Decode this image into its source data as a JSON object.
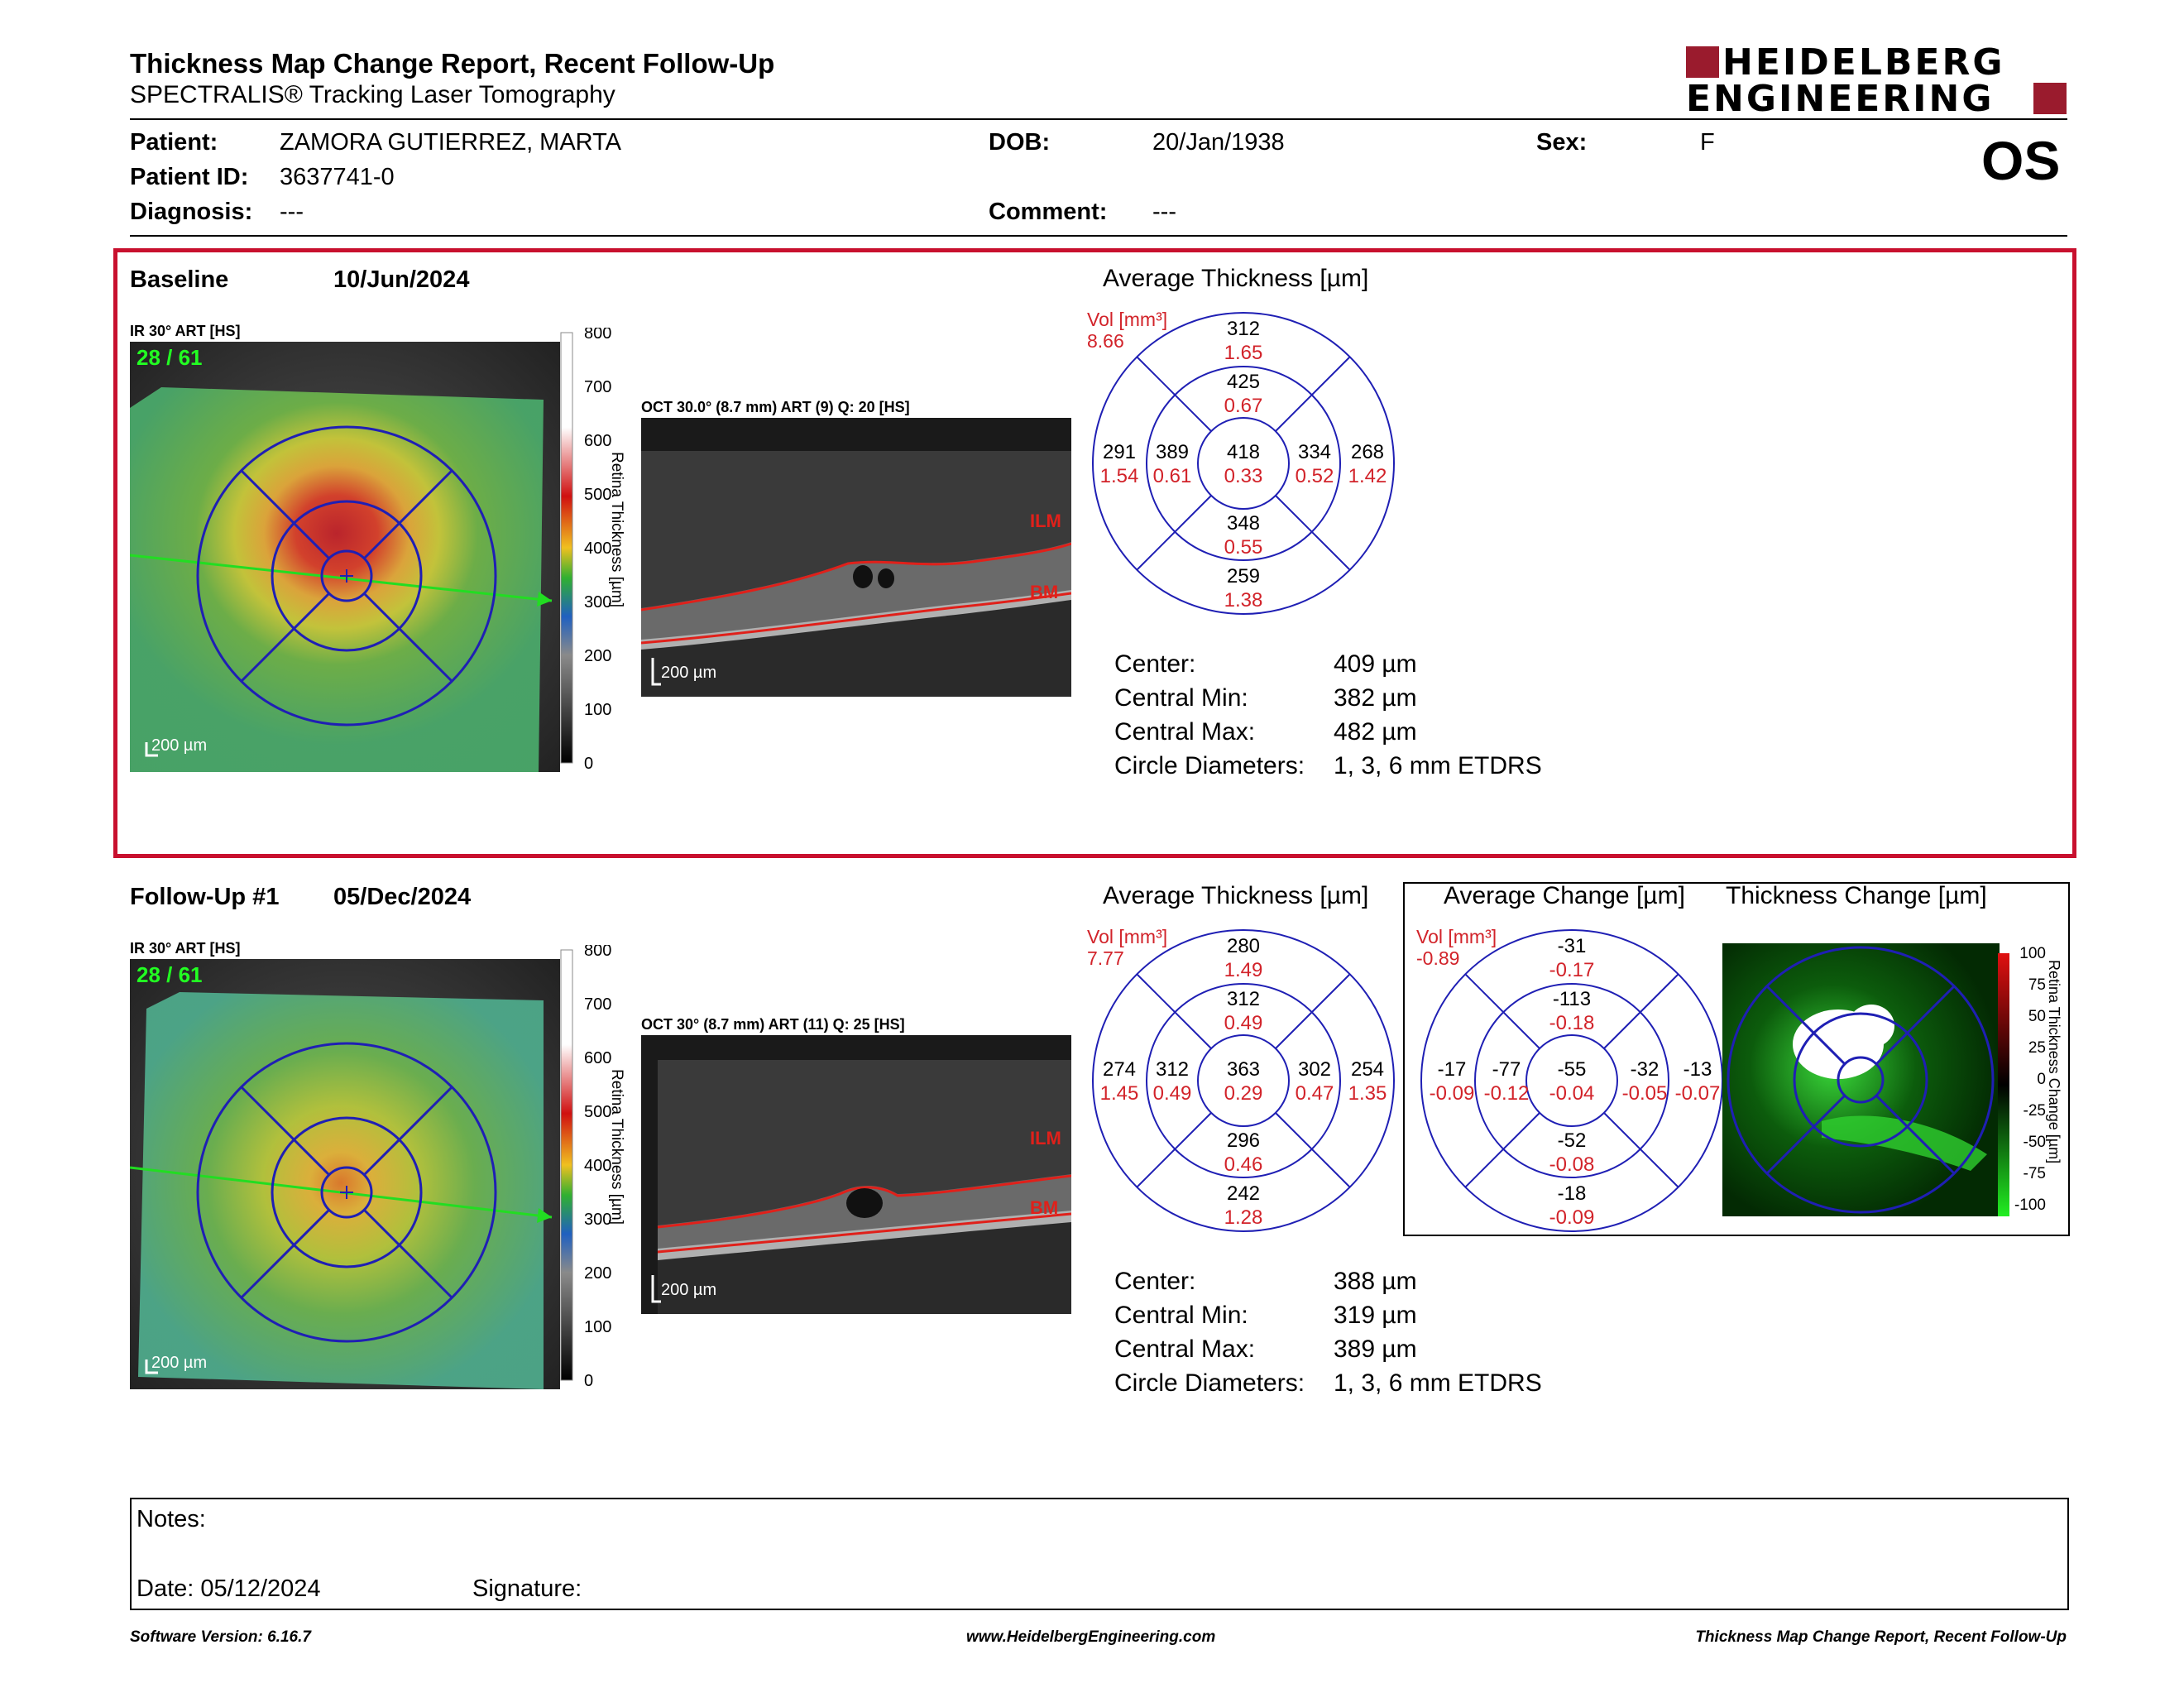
{
  "header": {
    "title": "Thickness Map Change Report, Recent Follow-Up",
    "subtitle": "SPECTRALIS® Tracking Laser Tomography",
    "logo_line1": "HEIDELBERG",
    "logo_line2": "ENGINEERING",
    "eye": "OS"
  },
  "patient": {
    "patient_label": "Patient:",
    "patient_value": "ZAMORA GUTIERREZ, MARTA",
    "id_label": "Patient ID:",
    "id_value": "3637741-0",
    "diagnosis_label": "Diagnosis:",
    "diagnosis_value": "---",
    "dob_label": "DOB:",
    "dob_value": "20/Jan/1938",
    "comment_label": "Comment:",
    "comment_value": "---",
    "sex_label": "Sex:",
    "sex_value": "F"
  },
  "baseline": {
    "label": "Baseline",
    "date": "10/Jun/2024",
    "ir_label": "IR 30° ART [HS]",
    "frame": "28 / 61",
    "scalebar": "200 µm",
    "colorbar_ticks": [
      "800",
      "700",
      "600",
      "500",
      "400",
      "300",
      "200",
      "100",
      "0"
    ],
    "colorbar_title": "Retina Thickness [µm]",
    "oct_label": "OCT 30.0° (8.7 mm) ART (9) Q: 20 [HS]",
    "oct_scalebar": "200 µm",
    "ilm": "ILM",
    "bm": "BM",
    "avg_title": "Average Thickness [µm]",
    "vol_label": "Vol [mm³]",
    "vol_value": "8.66",
    "sectors": {
      "outer_top": [
        "312",
        "1.65"
      ],
      "inner_top": [
        "425",
        "0.67"
      ],
      "outer_left": [
        "291",
        "1.54"
      ],
      "inner_left": [
        "389",
        "0.61"
      ],
      "center": [
        "418",
        "0.33"
      ],
      "inner_right": [
        "334",
        "0.52"
      ],
      "outer_right": [
        "268",
        "1.42"
      ],
      "inner_bottom": [
        "348",
        "0.55"
      ],
      "outer_bottom": [
        "259",
        "1.38"
      ]
    },
    "center_label": "Center:",
    "center_value": "409 µm",
    "min_label": "Central Min:",
    "min_value": "382 µm",
    "max_label": "Central Max:",
    "max_value": "482 µm",
    "circ_label": "Circle Diameters:",
    "circ_value": "1, 3, 6 mm ETDRS"
  },
  "followup": {
    "label": "Follow-Up #1",
    "date": "05/Dec/2024",
    "ir_label": "IR 30° ART [HS]",
    "frame": "28 / 61",
    "scalebar": "200 µm",
    "colorbar_ticks": [
      "800",
      "700",
      "600",
      "500",
      "400",
      "300",
      "200",
      "100",
      "0"
    ],
    "colorbar_title": "Retina Thickness [µm]",
    "oct_label": "OCT 30° (8.7 mm) ART (11) Q: 25 [HS]",
    "oct_scalebar": "200 µm",
    "ilm": "ILM",
    "bm": "BM",
    "avg_title": "Average Thickness [µm]",
    "vol_label": "Vol [mm³]",
    "vol_value": "7.77",
    "sectors": {
      "outer_top": [
        "280",
        "1.49"
      ],
      "inner_top": [
        "312",
        "0.49"
      ],
      "outer_left": [
        "274",
        "1.45"
      ],
      "inner_left": [
        "312",
        "0.49"
      ],
      "center": [
        "363",
        "0.29"
      ],
      "inner_right": [
        "302",
        "0.47"
      ],
      "outer_right": [
        "254",
        "1.35"
      ],
      "inner_bottom": [
        "296",
        "0.46"
      ],
      "outer_bottom": [
        "242",
        "1.28"
      ]
    },
    "change_title": "Average Change [µm]",
    "change_vol_label": "Vol [mm³]",
    "change_vol_value": "-0.89",
    "change_sectors": {
      "outer_top": [
        "-31",
        "-0.17"
      ],
      "inner_top": [
        "-113",
        "-0.18"
      ],
      "outer_left": [
        "-17",
        "-0.09"
      ],
      "inner_left": [
        "-77",
        "-0.12"
      ],
      "center": [
        "-55",
        "-0.04"
      ],
      "inner_right": [
        "-32",
        "-0.05"
      ],
      "outer_right": [
        "-13",
        "-0.07"
      ],
      "inner_bottom": [
        "-52",
        "-0.08"
      ],
      "outer_bottom": [
        "-18",
        "-0.09"
      ]
    },
    "thickness_change_title": "Thickness Change [µm]",
    "tc_ticks": [
      "100",
      "75",
      "50",
      "25",
      "0",
      "-25",
      "-50",
      "-75",
      "-100"
    ],
    "tc_colorbar_title": "Retina Thickness Change [µm]",
    "center_label": "Center:",
    "center_value": "388 µm",
    "min_label": "Central Min:",
    "min_value": "319 µm",
    "max_label": "Central Max:",
    "max_value": "389 µm",
    "circ_label": "Circle Diameters:",
    "circ_value": "1, 3, 6 mm ETDRS"
  },
  "notes": {
    "notes_label": "Notes:",
    "date_label": "Date: 05/12/2024",
    "signature_label": "Signature:"
  },
  "footer": {
    "software": "Software Version: 6.16.7",
    "website": "www.HeidelbergEngineering.com",
    "report": "Thickness Map Change Report, Recent Follow-Up"
  },
  "colors": {
    "accent_red": "#c8102e",
    "logo_red": "#9a1b2d",
    "etdrs_blue": "#1f1fb4",
    "volume_red": "#d2232a"
  }
}
